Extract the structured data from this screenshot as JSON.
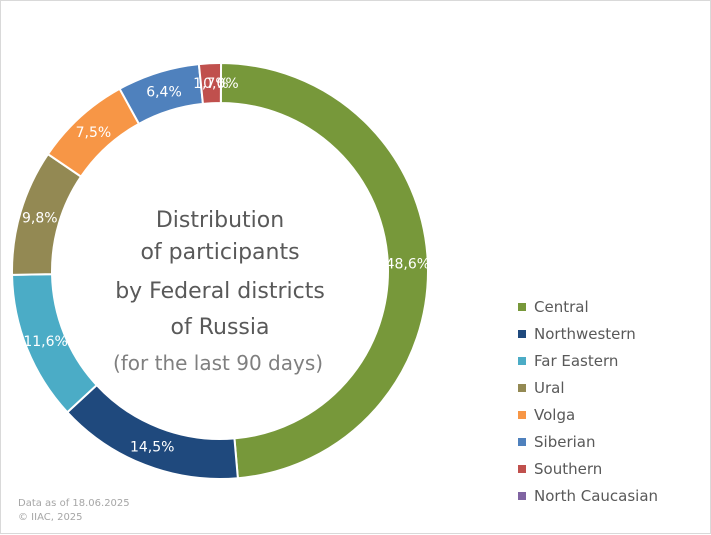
{
  "chart_data": {
    "type": "pie",
    "title_lines": [
      "Distribution",
      "of participants",
      "by Federal districts",
      "of Russia"
    ],
    "subtitle": "(for the last 90 days)",
    "series": [
      {
        "name": "Central",
        "value": 48.6,
        "label": "48,6%",
        "color": "#77983a"
      },
      {
        "name": "Northwestern",
        "value": 14.5,
        "label": "14,5%",
        "color": "#1f497d"
      },
      {
        "name": "Far Eastern",
        "value": 11.6,
        "label": "11,6%",
        "color": "#4bacc6"
      },
      {
        "name": "Ural",
        "value": 9.8,
        "label": "9,8%",
        "color": "#938953"
      },
      {
        "name": "Volga",
        "value": 7.5,
        "label": "7,5%",
        "color": "#f79646"
      },
      {
        "name": "Siberian",
        "value": 6.4,
        "label": "6,4%",
        "color": "#4f81bd"
      },
      {
        "name": "Southern",
        "value": 1.7,
        "label": "1,7%",
        "color": "#c0504d"
      },
      {
        "name": "North Caucasian",
        "value": 0.0,
        "label": "0,0%",
        "color": "#8064a2"
      }
    ],
    "legend_position": "right"
  },
  "footer": {
    "line1": "Data as of 18.06.2025",
    "line2": "© IIAC, 2025"
  }
}
